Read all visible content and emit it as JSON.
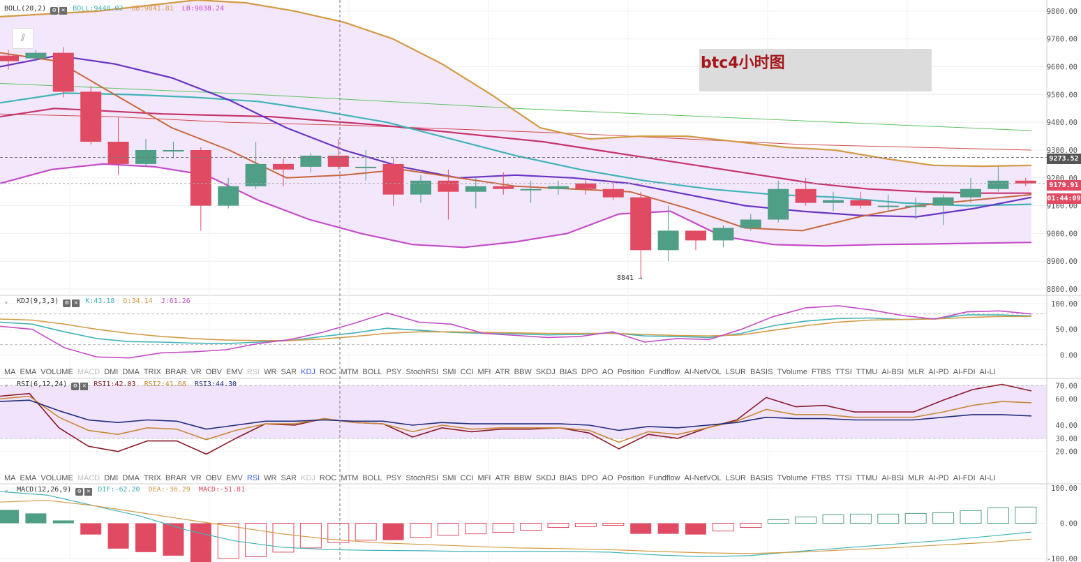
{
  "title_note": "btc4小时图",
  "colors": {
    "up": "#4f9e86",
    "down": "#e04a62",
    "boll_band": "#f1e3fb",
    "boll_upper": "#d39a43",
    "boll_mid": "#c6336a",
    "boll_lower": "#c44bc8",
    "ma_teal": "#3fb3b8",
    "ma_purple": "#6a35c4",
    "ma_orange": "#c8683e",
    "ma_green_long": "#5cc35f",
    "ma_red_long": "#d44a4a",
    "kdj_k": "#3fb3b8",
    "kdj_d": "#d39a43",
    "kdj_j": "#c44bc8",
    "rsi1": "#8b1a2a",
    "rsi2": "#c58a38",
    "rsi3": "#1f2d7a",
    "macd_dif": "#3fb3b8",
    "macd_dea": "#d39a43"
  },
  "legends": {
    "boll": {
      "name": "BOLL(20,2)",
      "boll": "BOLL:9440.02",
      "ub": "UB:9841.81",
      "lb": "LB:9038.24"
    },
    "kdj": {
      "name": "KDJ(9,3,3)",
      "k": "K:43.18",
      "d": "D:34.14",
      "j": "J:61.26"
    },
    "rsi": {
      "name": "RSI(6,12,24)",
      "r1": "RSI1:42.03",
      "r2": "RSI2:41.68",
      "r3": "RSI3:44.30"
    },
    "macd": {
      "name": "MACD(12,26,9)",
      "dif": "DIF:-62.20",
      "dea": "DEA:-36.29",
      "macd": "MACD:-51.81"
    }
  },
  "indicator_tabs": [
    "MA",
    "EMA",
    "VOLUME",
    "MACD",
    "DMI",
    "DMA",
    "TRIX",
    "BRAR",
    "VR",
    "OBV",
    "EMV",
    "RSI",
    "WR",
    "SAR",
    "KDJ",
    "ROC",
    "MTM",
    "BOLL",
    "PSY",
    "StochRSI",
    "SMI",
    "CCI",
    "MFI",
    "ATR",
    "BBW",
    "SKDJ",
    "BIAS",
    "DPO",
    "AO",
    "Position",
    "Fundflow",
    "AI-NetVOL",
    "LSUR",
    "BASIS",
    "TVolume",
    "FTBS",
    "TTSI",
    "TTMU",
    "AI-BSI",
    "MLR",
    "AI-PD",
    "AI-FDI",
    "AI-LI"
  ],
  "tab_bar_1": {
    "dim": [
      "MACD",
      "RSI"
    ],
    "active": [
      "KDJ"
    ]
  },
  "tab_bar_2": {
    "dim": [
      "MACD",
      "KDJ"
    ],
    "active": [
      "RSI"
    ]
  },
  "price_tags": {
    "cross": "9273.52",
    "last": "9179.91",
    "timer": "01:44:09"
  },
  "annotation_low": "8841 →",
  "chart_data": [
    {
      "type": "candlestick",
      "title": "btc4小时图",
      "ylim": [
        8780,
        9840
      ],
      "y_ticks": [
        8800,
        8900,
        9000,
        9100,
        9200,
        9300,
        9400,
        9500,
        9600,
        9700,
        9800
      ],
      "candles": [
        {
          "o": 9640,
          "h": 9660,
          "l": 9590,
          "c": 9620
        },
        {
          "o": 9630,
          "h": 9660,
          "l": 9620,
          "c": 9650
        },
        {
          "o": 9650,
          "h": 9670,
          "l": 9490,
          "c": 9510
        },
        {
          "o": 9510,
          "h": 9530,
          "l": 9320,
          "c": 9330
        },
        {
          "o": 9330,
          "h": 9420,
          "l": 9210,
          "c": 9250
        },
        {
          "o": 9250,
          "h": 9340,
          "l": 9240,
          "c": 9300
        },
        {
          "o": 9300,
          "h": 9330,
          "l": 9270,
          "c": 9300
        },
        {
          "o": 9300,
          "h": 9310,
          "l": 9010,
          "c": 9100
        },
        {
          "o": 9100,
          "h": 9200,
          "l": 9090,
          "c": 9170
        },
        {
          "o": 9170,
          "h": 9330,
          "l": 9160,
          "c": 9250
        },
        {
          "o": 9250,
          "h": 9270,
          "l": 9170,
          "c": 9230
        },
        {
          "o": 9240,
          "h": 9290,
          "l": 9220,
          "c": 9280
        },
        {
          "o": 9280,
          "h": 9340,
          "l": 9230,
          "c": 9240
        },
        {
          "o": 9240,
          "h": 9300,
          "l": 9190,
          "c": 9240
        },
        {
          "o": 9250,
          "h": 9270,
          "l": 9100,
          "c": 9140
        },
        {
          "o": 9140,
          "h": 9210,
          "l": 9110,
          "c": 9190
        },
        {
          "o": 9190,
          "h": 9230,
          "l": 9050,
          "c": 9150
        },
        {
          "o": 9150,
          "h": 9200,
          "l": 9090,
          "c": 9170
        },
        {
          "o": 9170,
          "h": 9220,
          "l": 9140,
          "c": 9160
        },
        {
          "o": 9160,
          "h": 9190,
          "l": 9110,
          "c": 9160
        },
        {
          "o": 9160,
          "h": 9190,
          "l": 9140,
          "c": 9170
        },
        {
          "o": 9180,
          "h": 9200,
          "l": 9140,
          "c": 9160
        },
        {
          "o": 9160,
          "h": 9190,
          "l": 9120,
          "c": 9130
        },
        {
          "o": 9130,
          "h": 9150,
          "l": 8841,
          "c": 8940
        },
        {
          "o": 8940,
          "h": 9100,
          "l": 8900,
          "c": 9010
        },
        {
          "o": 9010,
          "h": 9010,
          "l": 8940,
          "c": 8975
        },
        {
          "o": 8975,
          "h": 9030,
          "l": 8950,
          "c": 9020
        },
        {
          "o": 9020,
          "h": 9070,
          "l": 9010,
          "c": 9050
        },
        {
          "o": 9050,
          "h": 9190,
          "l": 9040,
          "c": 9160
        },
        {
          "o": 9160,
          "h": 9200,
          "l": 9100,
          "c": 9110
        },
        {
          "o": 9110,
          "h": 9150,
          "l": 9080,
          "c": 9120
        },
        {
          "o": 9120,
          "h": 9150,
          "l": 9090,
          "c": 9100
        },
        {
          "o": 9100,
          "h": 9140,
          "l": 9080,
          "c": 9100
        },
        {
          "o": 9100,
          "h": 9130,
          "l": 9050,
          "c": 9100
        },
        {
          "o": 9100,
          "h": 9140,
          "l": 9030,
          "c": 9130
        },
        {
          "o": 9130,
          "h": 9200,
          "l": 9110,
          "c": 9160
        },
        {
          "o": 9160,
          "h": 9240,
          "l": 9150,
          "c": 9190
        },
        {
          "o": 9190,
          "h": 9200,
          "l": 9170,
          "c": 9180
        }
      ],
      "boll_upper": [
        9780,
        9790,
        9800,
        9820,
        9840,
        9830,
        9800,
        9760,
        9700,
        9610,
        9500,
        9380,
        9340,
        9350,
        9350,
        9330,
        9310,
        9300,
        9270,
        9245,
        9242,
        9245
      ],
      "boll_mid": [
        9420,
        9450,
        9440,
        9430,
        9425,
        9420,
        9405,
        9390,
        9370,
        9350,
        9330,
        9300,
        9270,
        9240,
        9210,
        9180,
        9160,
        9150,
        9145,
        9145
      ],
      "boll_lower": [
        9180,
        9230,
        9250,
        9240,
        9210,
        9120,
        9050,
        9000,
        8960,
        8950,
        8970,
        9000,
        9070,
        9080,
        8990,
        8960,
        8955,
        8960,
        8962,
        8965,
        8968
      ],
      "ma_teal": [
        9470,
        9505,
        9500,
        9490,
        9475,
        9440,
        9400,
        9340,
        9280,
        9230,
        9190,
        9160,
        9140,
        9130,
        9110,
        9100,
        9105
      ],
      "ma_purple": [
        9600,
        9640,
        9610,
        9560,
        9480,
        9380,
        9300,
        9240,
        9200,
        9210,
        9200,
        9180,
        9140,
        9100,
        9080,
        9065,
        9060,
        9090,
        9130
      ],
      "ma_orange": [
        9650,
        9620,
        9500,
        9380,
        9300,
        9200,
        9210,
        9230,
        9200,
        9170,
        9160,
        9150,
        9090,
        9020,
        9010,
        9060,
        9100,
        9120,
        9140
      ],
      "ma_green_long": [
        9540,
        9520,
        9500,
        9475,
        9450,
        9430,
        9410,
        9390,
        9370
      ],
      "ma_red_long": [
        9430,
        9420,
        9400,
        9390,
        9375,
        9360,
        9340,
        9320,
        9310,
        9300
      ]
    },
    {
      "type": "line",
      "title": "KDJ(9,3,3)",
      "ylim": [
        -20,
        115
      ],
      "y_ticks": [
        0,
        50,
        100
      ],
      "series": [
        {
          "name": "K",
          "values": [
            64,
            60,
            45,
            32,
            26,
            25,
            23,
            22,
            25,
            28,
            36,
            43,
            52,
            48,
            44,
            42,
            41,
            39,
            40,
            43,
            37,
            36,
            34,
            42,
            57,
            66,
            71,
            72,
            69,
            71,
            78,
            78,
            76
          ]
        },
        {
          "name": "D",
          "values": [
            70,
            68,
            60,
            50,
            42,
            36,
            32,
            29,
            28,
            28,
            31,
            36,
            42,
            45,
            45,
            44,
            43,
            42,
            42,
            42,
            40,
            38,
            37,
            39,
            48,
            57,
            64,
            68,
            69,
            70,
            73,
            75,
            75
          ]
        },
        {
          "name": "J",
          "values": [
            56,
            50,
            14,
            -4,
            -6,
            4,
            6,
            10,
            22,
            30,
            44,
            62,
            82,
            64,
            60,
            42,
            38,
            34,
            36,
            45,
            25,
            32,
            30,
            50,
            75,
            92,
            96,
            88,
            77,
            70,
            84,
            86,
            80
          ]
        }
      ]
    },
    {
      "type": "line",
      "title": "RSI(6,12,24)",
      "ylim": [
        5,
        75
      ],
      "y_ticks": [
        20,
        30,
        40,
        60,
        70
      ],
      "series": [
        {
          "name": "RSI1",
          "values": [
            62,
            64,
            38,
            24,
            20,
            28,
            28,
            18,
            30,
            41,
            40,
            45,
            42,
            41,
            31,
            38,
            35,
            37,
            37,
            38,
            34,
            22,
            33,
            30,
            38,
            44,
            61,
            54,
            55,
            50,
            50,
            50,
            59,
            67,
            71,
            66
          ]
        },
        {
          "name": "RSI2",
          "values": [
            60,
            62,
            46,
            36,
            33,
            38,
            37,
            29,
            36,
            41,
            41,
            45,
            42,
            41,
            35,
            40,
            37,
            38,
            38,
            38,
            36,
            27,
            35,
            33,
            38,
            43,
            52,
            48,
            48,
            46,
            46,
            46,
            50,
            55,
            58,
            57
          ]
        },
        {
          "name": "RSI3",
          "values": [
            58,
            59,
            51,
            44,
            42,
            44,
            43,
            37,
            40,
            43,
            43,
            44,
            43,
            43,
            40,
            42,
            41,
            41,
            41,
            41,
            40,
            36,
            39,
            38,
            40,
            42,
            46,
            45,
            45,
            44,
            44,
            44,
            46,
            48,
            48,
            47
          ]
        }
      ]
    },
    {
      "type": "bar",
      "title": "MACD(12,26,9)",
      "ylim": [
        -110,
        110
      ],
      "y_ticks": [
        -100,
        0,
        100
      ],
      "histogram": [
        38,
        28,
        8,
        -32,
        -72,
        -82,
        -92,
        -110,
        -100,
        -95,
        -82,
        -70,
        -55,
        -48,
        -48,
        -40,
        -34,
        -30,
        -26,
        -20,
        -12,
        -10,
        -6,
        -30,
        -30,
        -32,
        -22,
        -12,
        10,
        18,
        24,
        26,
        26,
        28,
        30,
        36,
        44,
        46
      ],
      "series": [
        {
          "name": "DIF",
          "values": [
            90,
            80,
            50,
            20,
            -20,
            -50,
            -68,
            -75,
            -77,
            -78,
            -80,
            -80,
            -80,
            -82,
            -90,
            -95,
            -92,
            -80,
            -70,
            -60,
            -50,
            -38,
            -25
          ]
        },
        {
          "name": "DEA",
          "values": [
            60,
            65,
            50,
            30,
            10,
            -10,
            -30,
            -45,
            -55,
            -60,
            -65,
            -70,
            -72,
            -75,
            -80,
            -84,
            -86,
            -82,
            -76,
            -70,
            -62,
            -55,
            -45
          ]
        }
      ]
    }
  ]
}
